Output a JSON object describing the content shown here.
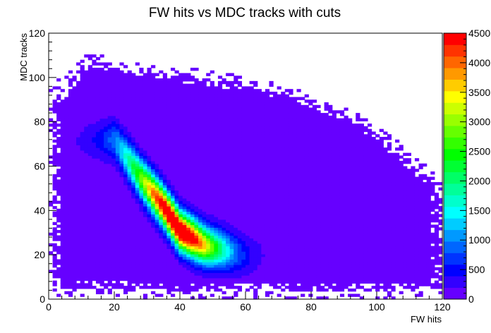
{
  "chart_data": {
    "type": "heatmap",
    "title": "FW hits vs MDC tracks with cuts",
    "xlabel": "FW hits",
    "ylabel": "MDC tracks",
    "xlim": [
      0,
      120
    ],
    "ylim": [
      0,
      120
    ],
    "zlim": [
      0,
      4500
    ],
    "x_ticks": [
      "0",
      "20",
      "40",
      "60",
      "80",
      "100",
      "120"
    ],
    "y_ticks": [
      "0",
      "20",
      "40",
      "60",
      "80",
      "100",
      "120"
    ],
    "z_ticks": [
      "0",
      "500",
      "1000",
      "1500",
      "2000",
      "2500",
      "3000",
      "3500",
      "4000",
      "4500"
    ],
    "grid": false,
    "legend": "color palette on the right",
    "colors": {
      "palette": [
        "#6600ff",
        "#3300ff",
        "#0000ff",
        "#0033ff",
        "#0066ff",
        "#0099ff",
        "#00ccff",
        "#00ffff",
        "#00ffcc",
        "#00ff99",
        "#00ff66",
        "#00ff33",
        "#00ff00",
        "#33ff00",
        "#66ff00",
        "#99ff00",
        "#ccff00",
        "#ffff00",
        "#ffcc00",
        "#ff9900",
        "#ff6600",
        "#ff3300",
        "#ff0000"
      ]
    },
    "peak": {
      "x": 40,
      "y": 30,
      "z": 4400
    },
    "ridge": [
      {
        "x": 20,
        "y": 72
      },
      {
        "x": 28,
        "y": 55
      },
      {
        "x": 35,
        "y": 42
      },
      {
        "x": 40,
        "y": 31
      },
      {
        "x": 48,
        "y": 24
      },
      {
        "x": 60,
        "y": 20
      }
    ],
    "occupied_region_outline": [
      [
        1,
        4
      ],
      [
        1,
        88
      ],
      [
        4,
        94
      ],
      [
        7,
        100
      ],
      [
        10,
        105
      ],
      [
        14,
        108
      ],
      [
        20,
        104
      ],
      [
        30,
        103
      ],
      [
        45,
        100
      ],
      [
        60,
        97
      ],
      [
        75,
        92
      ],
      [
        88,
        85
      ],
      [
        100,
        75
      ],
      [
        110,
        62
      ],
      [
        120,
        50
      ],
      [
        120,
        5
      ],
      [
        100,
        4
      ],
      [
        80,
        4
      ],
      [
        60,
        4
      ],
      [
        40,
        4
      ],
      [
        20,
        5
      ],
      [
        8,
        5
      ]
    ]
  }
}
